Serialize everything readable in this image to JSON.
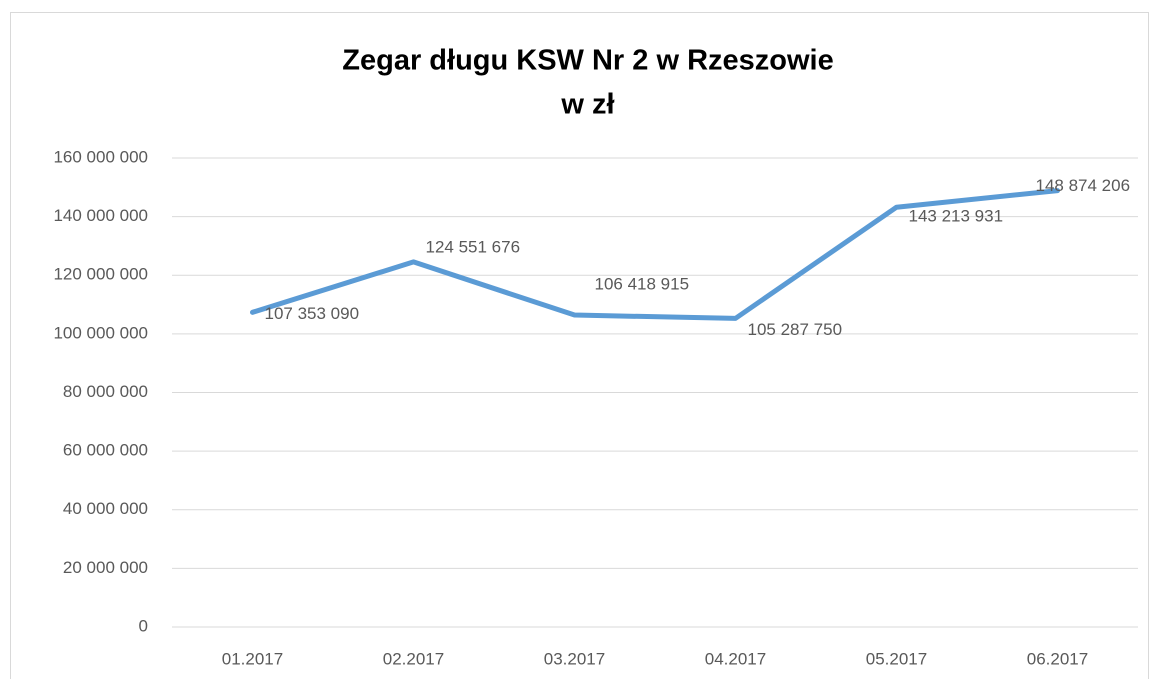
{
  "chart_data": {
    "type": "line",
    "title": "Zegar długu KSW Nr 2 w Rzeszowie",
    "subtitle": "w zł",
    "categories": [
      "01.2017",
      "02.2017",
      "03.2017",
      "04.2017",
      "05.2017",
      "06.2017"
    ],
    "series": [
      {
        "name": "Zegar długu",
        "color": "#5b9bd5",
        "values": [
          107353090,
          124551676,
          106418915,
          105287750,
          143213931,
          148874206
        ],
        "value_labels": [
          "107 353 090",
          "124 551 676",
          "106 418 915",
          "105 287 750",
          "143 213 931",
          "148 874 206"
        ]
      }
    ],
    "ylim": [
      0,
      160000000
    ],
    "yticks": [
      {
        "value": 0,
        "label": "0"
      },
      {
        "value": 20000000,
        "label": "20 000 000"
      },
      {
        "value": 40000000,
        "label": "40 000 000"
      },
      {
        "value": 60000000,
        "label": "60 000 000"
      },
      {
        "value": 80000000,
        "label": "80 000 000"
      },
      {
        "value": 100000000,
        "label": "100 000 000"
      },
      {
        "value": 120000000,
        "label": "120 000 000"
      },
      {
        "value": 140000000,
        "label": "140 000 000"
      },
      {
        "value": 160000000,
        "label": "160 000 000"
      }
    ],
    "grid": true
  }
}
